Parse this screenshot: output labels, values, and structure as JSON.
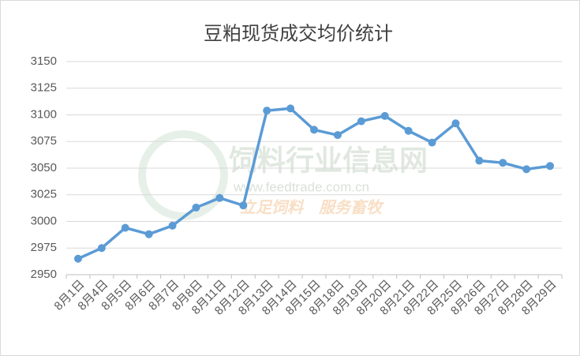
{
  "chart_data": {
    "type": "line",
    "title": "豆粕现货成交均价统计",
    "categories": [
      "8月1日",
      "8月4日",
      "8月5日",
      "8月6日",
      "8月7日",
      "8月8日",
      "8月11日",
      "8月12日",
      "8月13日",
      "8月14日",
      "8月15日",
      "8月18日",
      "8月19日",
      "8月20日",
      "8月21日",
      "8月22日",
      "8月25日",
      "8月26日",
      "8月27日",
      "8月28日",
      "8月29日"
    ],
    "series": [
      {
        "name": "豆粕现货成交均价",
        "color": "#5b9bd5",
        "values": [
          2965,
          2975,
          2994,
          2988,
          2996,
          3013,
          3022,
          3015,
          3104,
          3106,
          3086,
          3081,
          3094,
          3099,
          3085,
          3074,
          3092,
          3057,
          3055,
          3049,
          3052
        ]
      }
    ],
    "ylim": [
      2950,
      3150
    ],
    "yticks": [
      2950,
      2975,
      3000,
      3025,
      3050,
      3075,
      3100,
      3125,
      3150
    ],
    "grid": true,
    "annotations": [
      "饲料行业信息网",
      "www.feedtrade.com.cn",
      "立足饲料　服务畜牧"
    ]
  }
}
